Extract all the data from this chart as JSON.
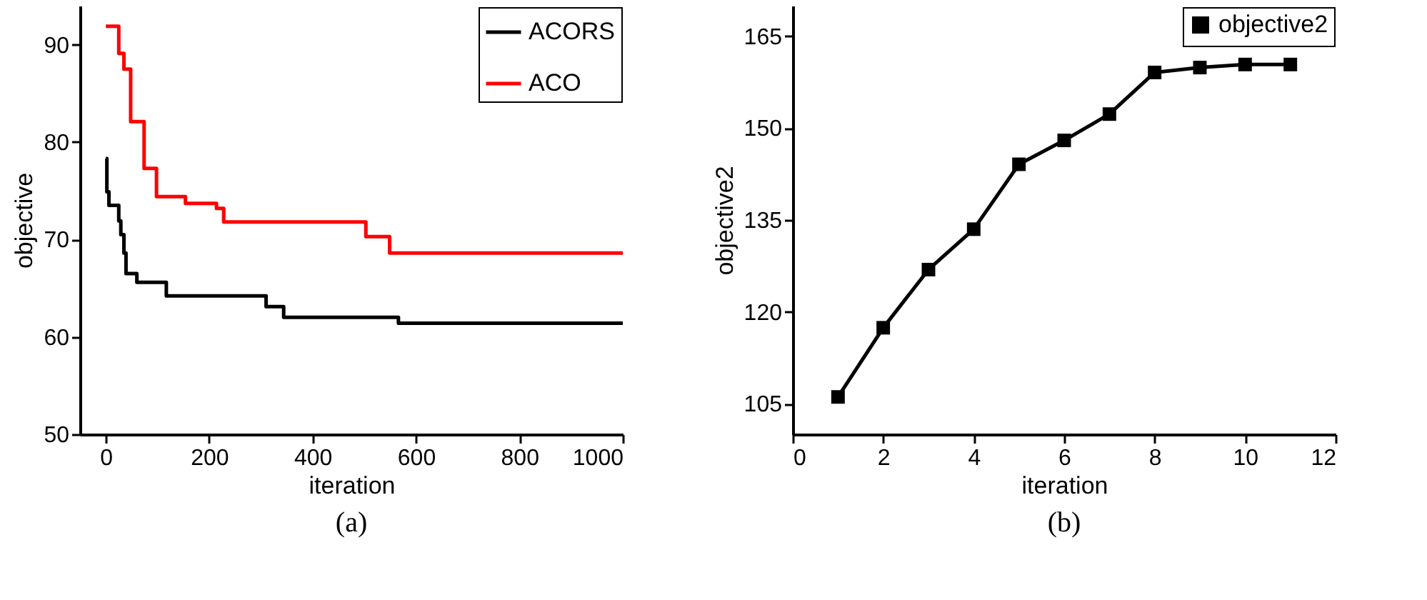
{
  "chart_data": [
    {
      "type": "step",
      "xlabel": "iteration",
      "ylabel": "objective",
      "annotations": [
        "(a)"
      ],
      "xlim": [
        -50,
        1000
      ],
      "xticks": [
        0,
        200,
        400,
        600,
        800,
        1000
      ],
      "ylim": [
        50,
        94
      ],
      "yticks": [
        50,
        60,
        70,
        80,
        90
      ],
      "grid": false,
      "legend": "top right",
      "marker": "none",
      "series": [
        {
          "name": "ACORS",
          "color": "#000000",
          "x": [
            0,
            2,
            6,
            25,
            29,
            35,
            39,
            60,
            117,
            310,
            344,
            566,
            1000
          ],
          "values": [
            78.3,
            74.9,
            73.5,
            71.9,
            70.5,
            68.6,
            66.5,
            65.6,
            64.2,
            63.1,
            62.0,
            61.4,
            61.4
          ]
        },
        {
          "name": "ACO",
          "color": "#ff0000",
          "x": [
            0,
            25,
            35,
            48,
            74,
            98,
            154,
            214,
            228,
            503,
            549,
            1000
          ],
          "values": [
            91.9,
            89.1,
            87.5,
            82.1,
            77.3,
            74.4,
            73.7,
            73.2,
            71.8,
            70.3,
            68.6,
            68.6
          ]
        }
      ]
    },
    {
      "type": "line",
      "xlabel": "iteration",
      "ylabel": "objective2",
      "annotations": [
        "(b)"
      ],
      "xlim": [
        0,
        12
      ],
      "xticks": [
        0,
        2,
        4,
        6,
        8,
        10,
        12
      ],
      "ylim": [
        100,
        170
      ],
      "yticks": [
        105,
        120,
        135,
        150,
        165
      ],
      "grid": false,
      "legend": "top right",
      "marker": "square",
      "series": [
        {
          "name": "objective2",
          "color": "#000000",
          "x": [
            1,
            2,
            3,
            4,
            5,
            6,
            7,
            8,
            9,
            10,
            11
          ],
          "values": [
            106.1,
            117.4,
            126.9,
            133.5,
            144.1,
            148.0,
            152.3,
            159.1,
            159.9,
            160.4,
            160.4
          ]
        }
      ]
    }
  ]
}
